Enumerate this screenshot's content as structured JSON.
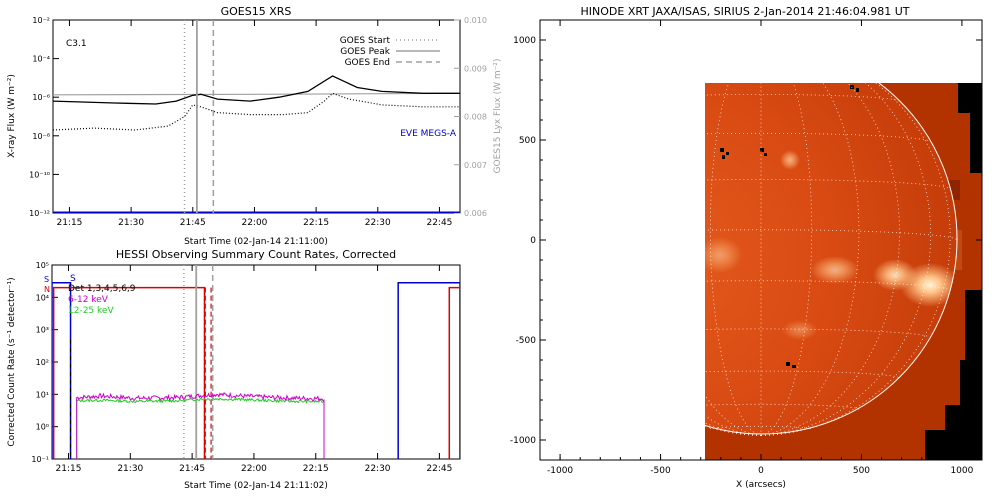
{
  "goes_panel": {
    "title": "GOES15 XRS",
    "flare_class": "C3.1",
    "xlabel": "Start Time (02-Jan-14 21:11:00)",
    "ylabel_left": "X-ray Flux (W m⁻²)",
    "ylabel_right": "GOES15 Lyx Flux (W m⁻²)",
    "eve_label": "EVE MEGS-A",
    "legend": [
      {
        "label": "GOES Start",
        "style": "dotted"
      },
      {
        "label": "GOES Peak",
        "style": "solid"
      },
      {
        "label": "GOES End",
        "style": "dashed"
      }
    ],
    "x_ticks": [
      "21:15",
      "21:30",
      "21:45",
      "22:00",
      "22:15",
      "22:30",
      "22:45"
    ],
    "y_ticks_left": [
      "10⁻²",
      "10⁻⁴",
      "10⁻⁶",
      "10⁻⁸",
      "10⁻¹⁰",
      "10⁻¹²"
    ],
    "y_ticks_right": [
      "0.010",
      "0.009",
      "0.008",
      "0.007",
      "0.006"
    ],
    "colors": {
      "long": "#000000",
      "short": "#000000",
      "lya": "#a0a0a0",
      "eve": "#0000cc",
      "markers": "#a0a0a0"
    }
  },
  "hessi_panel": {
    "title": "HESSI Observing Summary Count Rates, Corrected",
    "xlabel": "Start Time (02-Jan-14 21:11:02)",
    "ylabel": "Corrected Count Rate (s⁻¹ detector⁻¹)",
    "legend": [
      {
        "label": "S",
        "color": "#0000cc"
      },
      {
        "label": "Det 1,3,4,5,6,9",
        "color": "#000000"
      },
      {
        "label": "6-12 keV",
        "color": "#cc00cc"
      },
      {
        "label": "12-25 keV",
        "color": "#22cc22"
      }
    ],
    "side_letters": {
      "s": "S",
      "n": "N"
    },
    "x_ticks": [
      "21:15",
      "21:30",
      "21:45",
      "22:00",
      "22:15",
      "22:30",
      "22:45"
    ],
    "y_ticks": [
      "10⁵",
      "10⁴",
      "10³",
      "10²",
      "10¹",
      "10⁰",
      "10⁻¹"
    ],
    "colors": {
      "low": "#cc00cc",
      "high": "#22cc22",
      "saa": "#0000cc",
      "night": "#dd0000"
    }
  },
  "image_panel": {
    "title": "HINODE XRT JAXA/ISAS, SIRIUS  2-Jan-2014 21:46:04.981 UT",
    "xlabel": "X (arcsecs)",
    "x_ticks": [
      "-1000",
      "-500",
      "0",
      "500",
      "1000"
    ],
    "y_ticks": [
      "1000",
      "500",
      "0",
      "-500",
      "-1000"
    ]
  },
  "chart_data": [
    {
      "type": "line",
      "title": "GOES15 XRS",
      "xlabel": "Start Time (02-Jan-14 21:11:00)",
      "x_unit": "minutes after 21:11",
      "xlim": [
        0,
        99
      ],
      "ylim_log10": [
        -12,
        -2
      ],
      "ylim_right": [
        0.006,
        0.01
      ],
      "series": [
        {
          "name": "long",
          "x": [
            0,
            15,
            25,
            30,
            34,
            36,
            40,
            48,
            55,
            62,
            68,
            70,
            74,
            80,
            90,
            99
          ],
          "y_log10": [
            -6.2,
            -6.3,
            -6.35,
            -6.2,
            -5.9,
            -5.85,
            -6.1,
            -6.2,
            -6.0,
            -5.7,
            -4.9,
            -5.1,
            -5.5,
            -5.7,
            -5.8,
            -5.8
          ]
        },
        {
          "name": "short",
          "x": [
            0,
            10,
            20,
            28,
            32,
            34,
            36,
            40,
            48,
            56,
            62,
            66,
            68,
            72,
            80,
            90,
            99
          ],
          "y_log10": [
            -7.7,
            -7.6,
            -7.7,
            -7.5,
            -7.0,
            -6.4,
            -6.5,
            -6.8,
            -6.9,
            -6.9,
            -6.8,
            -6.2,
            -5.8,
            -6.1,
            -6.4,
            -6.5,
            -6.5
          ]
        },
        {
          "name": "lya_right_axis",
          "x": [
            0,
            50,
            99
          ],
          "y": [
            0.00845,
            0.00846,
            0.00848
          ]
        },
        {
          "name": "EVE MEGS-A",
          "x": [
            0,
            99
          ],
          "y_log10": [
            -12,
            -12
          ]
        }
      ],
      "markers": {
        "start_min": 32,
        "peak_min": 35,
        "end_min": 39
      }
    },
    {
      "type": "line",
      "title": "HESSI Observing Summary Count Rates, Corrected",
      "xlabel": "Start Time (02-Jan-14 21:11:02)",
      "x_unit": "minutes after 21:11",
      "xlim": [
        0,
        99
      ],
      "ylim_log10": [
        -1,
        5
      ],
      "series": [
        {
          "name": "6-12 keV",
          "x": [
            6,
            12,
            20,
            30,
            36,
            40,
            46,
            54,
            60,
            66
          ],
          "y_log10": [
            0.9,
            0.95,
            0.88,
            0.9,
            0.96,
            1.0,
            0.95,
            0.9,
            0.88,
            0.87
          ]
        },
        {
          "name": "12-25 keV",
          "x": [
            6,
            12,
            20,
            30,
            36,
            40,
            46,
            54,
            60,
            66
          ],
          "y_log10": [
            0.8,
            0.82,
            0.78,
            0.8,
            0.85,
            0.86,
            0.84,
            0.8,
            0.78,
            0.78
          ]
        }
      ],
      "saa_intervals": [
        [
          0,
          4.5
        ],
        [
          84,
          99
        ]
      ],
      "night_intervals": [
        [
          0,
          37
        ],
        [
          96,
          99
        ]
      ],
      "flag_lines_min": [
        4.5,
        37.5,
        39
      ]
    },
    {
      "type": "heatmap",
      "title": "HINODE XRT JAXA/ISAS, SIRIUS  2-Jan-2014 21:46:04.981 UT",
      "xlabel": "X (arcsecs)",
      "xlim": [
        -1100,
        1100
      ],
      "ylim": [
        -1100,
        1100
      ],
      "fov_x": [
        -280,
        1100
      ],
      "fov_y": [
        -1100,
        780
      ],
      "limb_radius": 975
    }
  ]
}
